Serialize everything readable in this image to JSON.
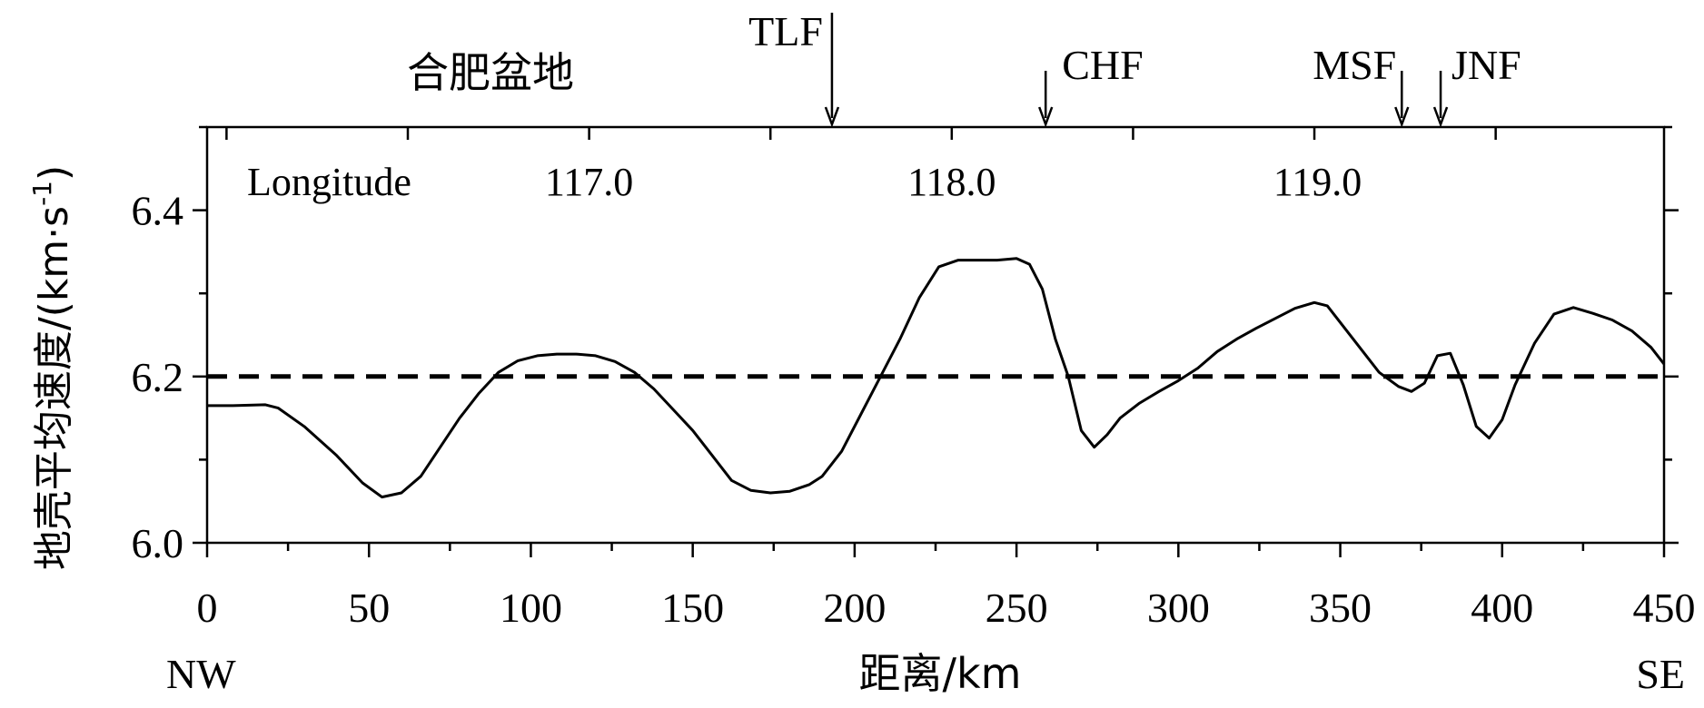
{
  "chart_data": {
    "type": "line",
    "region_label": "合肥盆地",
    "xlabel": "距离/km",
    "ylabel": "地壳平均速度/(km·s",
    "ylabel_sup": "-1",
    "ylabel_close": ")",
    "x_left_label": "NW",
    "x_right_label": "SE",
    "xlim": [
      0,
      450
    ],
    "ylim": [
      6.0,
      6.5
    ],
    "x_ticks": [
      0,
      50,
      100,
      150,
      200,
      250,
      300,
      350,
      400,
      450
    ],
    "x_tick_labels": [
      "0",
      "50",
      "100",
      "150",
      "200",
      "250",
      "300",
      "350",
      "400",
      "450"
    ],
    "y_ticks": [
      6.0,
      6.2,
      6.4
    ],
    "y_tick_labels": [
      "6.0",
      "6.2",
      "6.4"
    ],
    "longitude_axis": {
      "label": "Longitude",
      "ticks": [
        {
          "value": "117.0",
          "x": 118
        },
        {
          "value": "118.0",
          "x": 230
        },
        {
          "value": "119.0",
          "x": 343
        }
      ]
    },
    "faults": [
      {
        "name": "TLF",
        "x": 193
      },
      {
        "name": "CHF",
        "x": 259
      },
      {
        "name": "MSF",
        "x": 369
      },
      {
        "name": "JNF",
        "x": 381
      }
    ],
    "reference_line": {
      "y": 6.2,
      "style": "dashed"
    },
    "series": [
      {
        "x": [
          0,
          8,
          18,
          22,
          30,
          40,
          48,
          54,
          60,
          66,
          72,
          78,
          84,
          90,
          96,
          102,
          108,
          114,
          120,
          126,
          132,
          138,
          144,
          150,
          156,
          162,
          168,
          174,
          180,
          186,
          190,
          196,
          202,
          208,
          214,
          220,
          226,
          232,
          238,
          244,
          250,
          254,
          258,
          262,
          266,
          270,
          274,
          278,
          282,
          288,
          294,
          300,
          306,
          312,
          318,
          324,
          330,
          336,
          342,
          346,
          350,
          356,
          362,
          368,
          372,
          376,
          380,
          384,
          388,
          392,
          396,
          400,
          404,
          410,
          416,
          422,
          428,
          434,
          440,
          446,
          450
        ],
        "y": [
          6.165,
          6.165,
          6.166,
          6.162,
          6.14,
          6.105,
          6.072,
          6.055,
          6.06,
          6.08,
          6.115,
          6.15,
          6.18,
          6.205,
          6.219,
          6.225,
          6.227,
          6.227,
          6.225,
          6.218,
          6.205,
          6.185,
          6.16,
          6.135,
          6.105,
          6.075,
          6.063,
          6.06,
          6.062,
          6.07,
          6.08,
          6.11,
          6.155,
          6.2,
          6.245,
          6.295,
          6.332,
          6.34,
          6.34,
          6.34,
          6.342,
          6.335,
          6.305,
          6.245,
          6.2,
          6.135,
          6.115,
          6.13,
          6.15,
          6.168,
          6.182,
          6.195,
          6.21,
          6.23,
          6.245,
          6.258,
          6.27,
          6.282,
          6.289,
          6.285,
          6.265,
          6.235,
          6.205,
          6.188,
          6.182,
          6.192,
          6.225,
          6.228,
          6.19,
          6.14,
          6.126,
          6.148,
          6.19,
          6.24,
          6.275,
          6.283,
          6.276,
          6.268,
          6.255,
          6.235,
          6.215
        ]
      }
    ]
  }
}
